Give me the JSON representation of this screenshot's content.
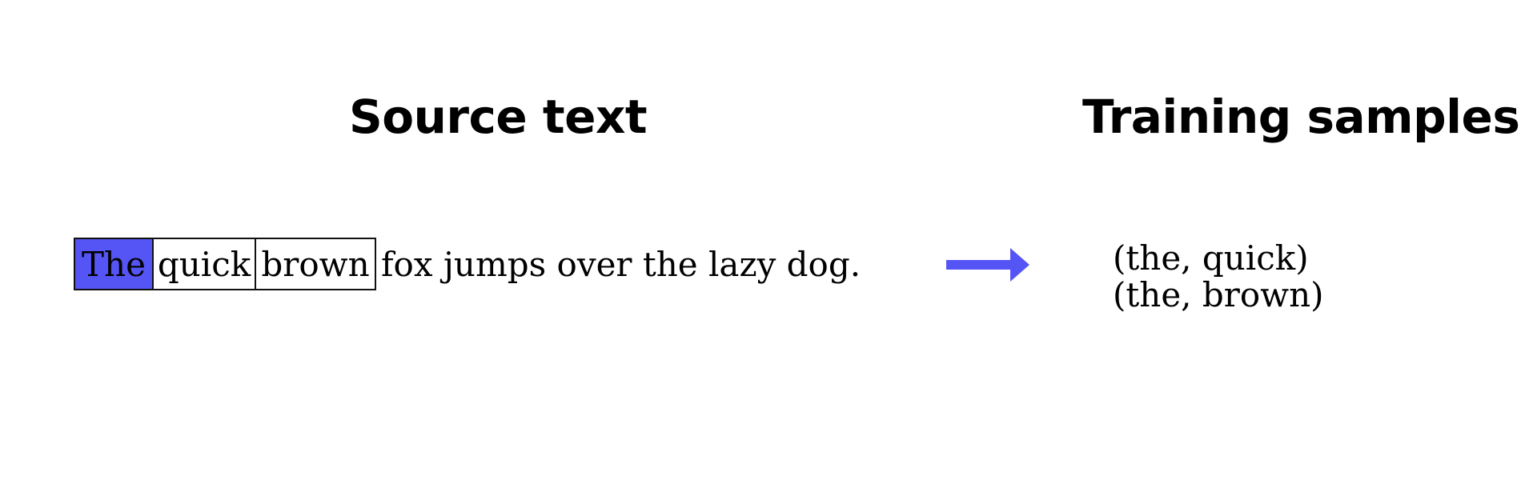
{
  "headings": {
    "source": "Source text",
    "samples": "Training samples"
  },
  "sentence": {
    "target_word": "The",
    "context_words": [
      "quick",
      "brown"
    ],
    "rest": "fox jumps over the lazy dog."
  },
  "samples": [
    "(the, quick)",
    "(the, brown)"
  ],
  "colors": {
    "highlight": "#5555f5",
    "arrow": "#5555f5",
    "box_border": "#111111"
  },
  "icons": {
    "arrow": "right-arrow-icon"
  }
}
